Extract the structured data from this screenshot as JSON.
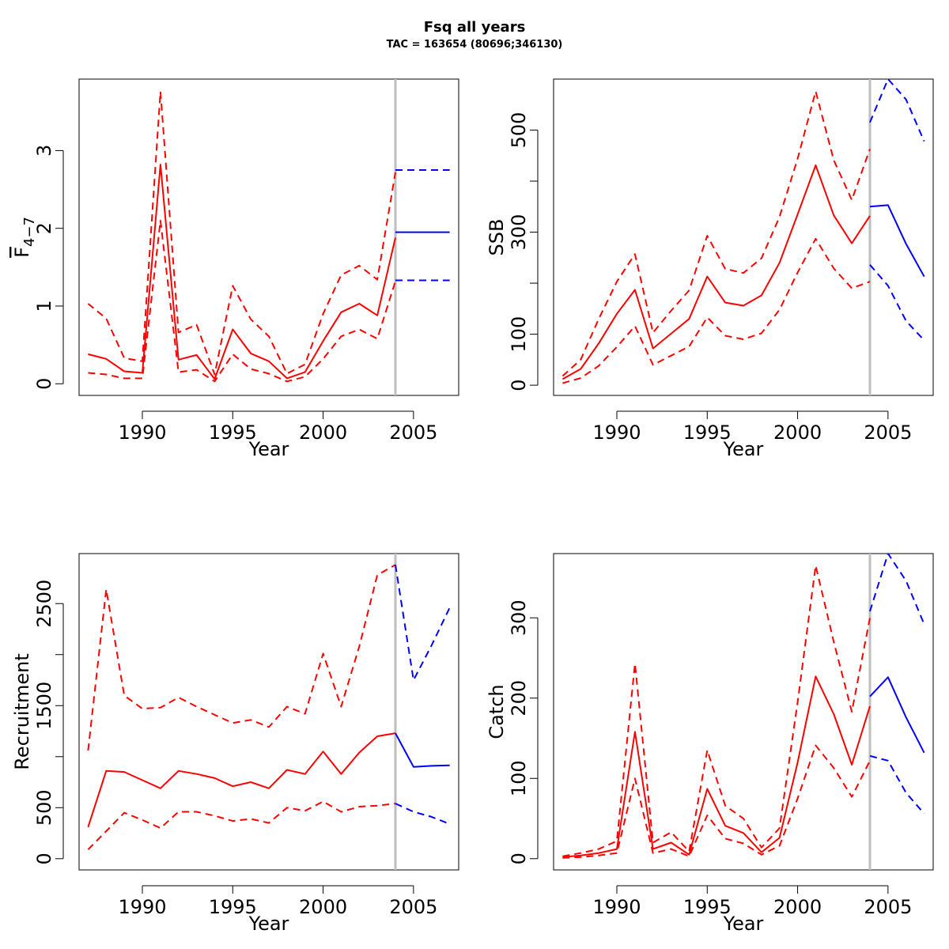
{
  "title": "Fsq all years",
  "subtitle": "TAC = 163654 (80696;346130)",
  "colors": {
    "historic": "#ff0000",
    "forecast": "#0000ff",
    "divider": "#bebebe",
    "axis": "#000000"
  },
  "chart_data": [
    {
      "type": "line",
      "xlabel": "Year",
      "ylabel": "F4-7",
      "ylabel_main": "F",
      "ylabel_sub": "4−7",
      "xlim": [
        1986.5,
        2007.5
      ],
      "ylim": [
        -0.15,
        3.92
      ],
      "xticks": [
        1990,
        1995,
        2000,
        2005
      ],
      "yticks": [
        0,
        1,
        2,
        3
      ],
      "divider_x": 2004,
      "series": [
        {
          "role": "estimate",
          "line": "solid",
          "color": "historic",
          "x": [
            1987,
            1988,
            1989,
            1990,
            1991,
            1992,
            1993,
            1994,
            1995,
            1996,
            1997,
            1998,
            1999,
            2000,
            2001,
            2002,
            2003,
            2004
          ],
          "y": [
            0.38,
            0.32,
            0.16,
            0.14,
            2.82,
            0.31,
            0.37,
            0.06,
            0.7,
            0.39,
            0.29,
            0.07,
            0.15,
            0.55,
            0.92,
            1.03,
            0.88,
            1.88
          ]
        },
        {
          "role": "upper",
          "line": "dashed",
          "color": "historic",
          "x": [
            1987,
            1988,
            1989,
            1990,
            1991,
            1992,
            1993,
            1994,
            1995,
            1996,
            1997,
            1998,
            1999,
            2000,
            2001,
            2002,
            2003,
            2004
          ],
          "y": [
            1.03,
            0.84,
            0.33,
            0.29,
            3.76,
            0.66,
            0.76,
            0.12,
            1.26,
            0.83,
            0.61,
            0.13,
            0.25,
            0.9,
            1.4,
            1.52,
            1.34,
            2.72
          ]
        },
        {
          "role": "lower",
          "line": "dashed",
          "color": "historic",
          "x": [
            1987,
            1988,
            1989,
            1990,
            1991,
            1992,
            1993,
            1994,
            1995,
            1996,
            1997,
            1998,
            1999,
            2000,
            2001,
            2002,
            2003,
            2004
          ],
          "y": [
            0.14,
            0.12,
            0.07,
            0.07,
            2.1,
            0.15,
            0.18,
            0.03,
            0.38,
            0.19,
            0.13,
            0.03,
            0.09,
            0.32,
            0.61,
            0.7,
            0.58,
            1.32
          ]
        },
        {
          "role": "forecast",
          "line": "solid",
          "color": "forecast",
          "x": [
            2004,
            2005,
            2006,
            2007
          ],
          "y": [
            1.95,
            1.95,
            1.95,
            1.95
          ]
        },
        {
          "role": "forecast-upper",
          "line": "dashed",
          "color": "forecast",
          "x": [
            2004,
            2005,
            2006,
            2007
          ],
          "y": [
            2.75,
            2.75,
            2.75,
            2.75
          ]
        },
        {
          "role": "forecast-lower",
          "line": "dashed",
          "color": "forecast",
          "x": [
            2004,
            2005,
            2006,
            2007
          ],
          "y": [
            1.33,
            1.33,
            1.33,
            1.33
          ]
        }
      ]
    },
    {
      "type": "line",
      "xlabel": "Year",
      "ylabel": "SSB",
      "xlim": [
        1986.5,
        2007.5
      ],
      "ylim": [
        -20,
        600
      ],
      "xticks": [
        1990,
        1995,
        2000,
        2005
      ],
      "yticks": [
        0,
        100,
        200,
        300,
        400,
        500
      ],
      "ytick_labels": [
        "0",
        "100",
        "",
        "300",
        "",
        "500"
      ],
      "divider_x": 2004,
      "series": [
        {
          "role": "estimate",
          "line": "solid",
          "color": "historic",
          "x": [
            1987,
            1988,
            1989,
            1990,
            1991,
            1992,
            1993,
            1994,
            1995,
            1996,
            1997,
            1998,
            1999,
            2000,
            2001,
            2002,
            2003,
            2004
          ],
          "y": [
            12,
            32,
            82,
            140,
            187,
            72,
            101,
            130,
            213,
            162,
            156,
            176,
            240,
            335,
            431,
            333,
            278,
            332
          ]
        },
        {
          "role": "upper",
          "line": "dashed",
          "color": "historic",
          "x": [
            1987,
            1988,
            1989,
            1990,
            1991,
            1992,
            1993,
            1994,
            1995,
            1996,
            1997,
            1998,
            1999,
            2000,
            2001,
            2002,
            2003,
            2004
          ],
          "y": [
            18,
            50,
            130,
            203,
            257,
            103,
            146,
            186,
            293,
            228,
            220,
            249,
            330,
            444,
            576,
            441,
            363,
            463
          ]
        },
        {
          "role": "lower",
          "line": "dashed",
          "color": "historic",
          "x": [
            1987,
            1988,
            1989,
            1990,
            1991,
            1992,
            1993,
            1994,
            1995,
            1996,
            1997,
            1998,
            1999,
            2000,
            2001,
            2002,
            2003,
            2004
          ],
          "y": [
            4,
            14,
            38,
            75,
            116,
            40,
            58,
            76,
            133,
            97,
            90,
            102,
            148,
            221,
            287,
            229,
            190,
            203
          ]
        },
        {
          "role": "forecast",
          "line": "solid",
          "color": "forecast",
          "x": [
            2004,
            2005,
            2006,
            2007
          ],
          "y": [
            350,
            353,
            277,
            213
          ]
        },
        {
          "role": "forecast-upper",
          "line": "dashed",
          "color": "forecast",
          "x": [
            2004,
            2005,
            2006,
            2007
          ],
          "y": [
            515,
            600,
            560,
            478
          ]
        },
        {
          "role": "forecast-lower",
          "line": "dashed",
          "color": "forecast",
          "x": [
            2004,
            2005,
            2006,
            2007
          ],
          "y": [
            236,
            195,
            126,
            88
          ]
        }
      ]
    },
    {
      "type": "line",
      "xlabel": "Year",
      "ylabel": "Recruitment",
      "xlim": [
        1986.5,
        2007.5
      ],
      "ylim": [
        -110,
        2990
      ],
      "xticks": [
        1990,
        1995,
        2000,
        2005
      ],
      "yticks": [
        0,
        500,
        1000,
        1500,
        2000,
        2500
      ],
      "ytick_labels": [
        "0",
        "500",
        "",
        "1500",
        "",
        "2500"
      ],
      "divider_x": 2004,
      "series": [
        {
          "role": "estimate",
          "line": "solid",
          "color": "historic",
          "x": [
            1987,
            1988,
            1989,
            1990,
            1991,
            1992,
            1993,
            1994,
            1995,
            1996,
            1997,
            1998,
            1999,
            2000,
            2001,
            2002,
            2003,
            2004
          ],
          "y": [
            310,
            860,
            850,
            770,
            690,
            860,
            830,
            790,
            710,
            750,
            690,
            870,
            830,
            1050,
            830,
            1040,
            1200,
            1230
          ]
        },
        {
          "role": "upper",
          "line": "dashed",
          "color": "historic",
          "x": [
            1987,
            1988,
            1989,
            1990,
            1991,
            1992,
            1993,
            1994,
            1995,
            1996,
            1997,
            1998,
            1999,
            2000,
            2001,
            2002,
            2003,
            2004
          ],
          "y": [
            1060,
            2640,
            1600,
            1470,
            1480,
            1580,
            1490,
            1410,
            1330,
            1360,
            1290,
            1490,
            1420,
            2010,
            1490,
            2080,
            2780,
            2880
          ]
        },
        {
          "role": "lower",
          "line": "dashed",
          "color": "historic",
          "x": [
            1987,
            1988,
            1989,
            1990,
            1991,
            1992,
            1993,
            1994,
            1995,
            1996,
            1997,
            1998,
            1999,
            2000,
            2001,
            2002,
            2003,
            2004
          ],
          "y": [
            90,
            270,
            450,
            380,
            300,
            460,
            460,
            420,
            370,
            390,
            350,
            500,
            470,
            560,
            460,
            510,
            520,
            540
          ]
        },
        {
          "role": "forecast",
          "line": "solid",
          "color": "forecast",
          "x": [
            2004,
            2005,
            2006,
            2007
          ],
          "y": [
            1230,
            900,
            910,
            915
          ]
        },
        {
          "role": "forecast-upper",
          "line": "dashed",
          "color": "forecast",
          "x": [
            2004,
            2005,
            2006,
            2007
          ],
          "y": [
            2880,
            1750,
            2090,
            2460
          ]
        },
        {
          "role": "forecast-lower",
          "line": "dashed",
          "color": "forecast",
          "x": [
            2004,
            2005,
            2006,
            2007
          ],
          "y": [
            540,
            460,
            410,
            340
          ]
        }
      ]
    },
    {
      "type": "line",
      "xlabel": "Year",
      "ylabel": "Catch",
      "xlim": [
        1986.5,
        2007.5
      ],
      "ylim": [
        -14,
        380
      ],
      "xticks": [
        1990,
        1995,
        2000,
        2005
      ],
      "yticks": [
        0,
        100,
        200,
        300
      ],
      "divider_x": 2004,
      "series": [
        {
          "role": "estimate",
          "line": "solid",
          "color": "historic",
          "x": [
            1987,
            1988,
            1989,
            1990,
            1991,
            1992,
            1993,
            1994,
            1995,
            1996,
            1997,
            1998,
            1999,
            2000,
            2001,
            2002,
            2003,
            2004
          ],
          "y": [
            2,
            4,
            7,
            12,
            158,
            12,
            20,
            5,
            87,
            41,
            32,
            8,
            26,
            120,
            227,
            180,
            117,
            190
          ]
        },
        {
          "role": "upper",
          "line": "dashed",
          "color": "historic",
          "x": [
            1987,
            1988,
            1989,
            1990,
            1991,
            1992,
            1993,
            1994,
            1995,
            1996,
            1997,
            1998,
            1999,
            2000,
            2001,
            2002,
            2003,
            2004
          ],
          "y": [
            3,
            7,
            12,
            22,
            243,
            20,
            33,
            9,
            135,
            66,
            50,
            14,
            38,
            195,
            365,
            270,
            183,
            300
          ]
        },
        {
          "role": "lower",
          "line": "dashed",
          "color": "historic",
          "x": [
            1987,
            1988,
            1989,
            1990,
            1991,
            1992,
            1993,
            1994,
            1995,
            1996,
            1997,
            1998,
            1999,
            2000,
            2001,
            2002,
            2003,
            2004
          ],
          "y": [
            1,
            2,
            4,
            7,
            100,
            7,
            12,
            3,
            54,
            25,
            19,
            5,
            16,
            75,
            141,
            113,
            77,
            122
          ]
        },
        {
          "role": "forecast",
          "line": "solid",
          "color": "forecast",
          "x": [
            2004,
            2005,
            2006,
            2007
          ],
          "y": [
            202,
            226,
            176,
            132
          ]
        },
        {
          "role": "forecast-upper",
          "line": "dashed",
          "color": "forecast",
          "x": [
            2004,
            2005,
            2006,
            2007
          ],
          "y": [
            308,
            380,
            346,
            292
          ]
        },
        {
          "role": "forecast-lower",
          "line": "dashed",
          "color": "forecast",
          "x": [
            2004,
            2005,
            2006,
            2007
          ],
          "y": [
            128,
            122,
            82,
            56
          ]
        }
      ]
    }
  ]
}
